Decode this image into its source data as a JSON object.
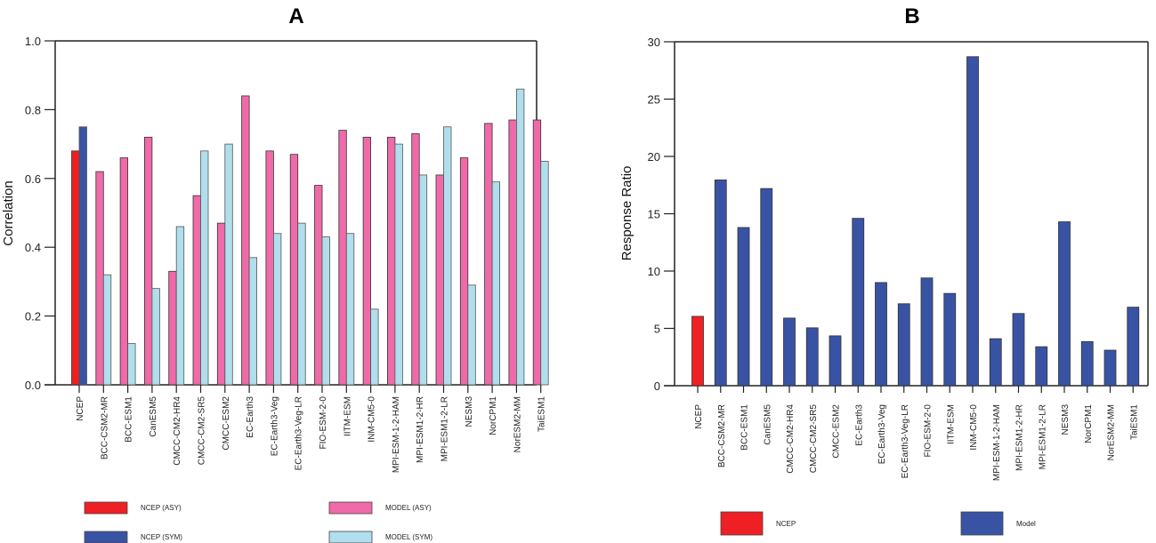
{
  "chart_data": [
    {
      "type": "bar",
      "title": "A",
      "xlabel": "",
      "ylabel": "Correlation",
      "ylim": [
        0,
        1.0
      ],
      "yticks": [
        "0.0",
        "0.2",
        "0.4",
        "0.6",
        "0.8",
        "1.0"
      ],
      "categories": [
        "NCEP",
        "BCC-CSM2-MR",
        "BCC-ESM1",
        "CanESM5",
        "CMCC-CM2-HR4",
        "CMCC-CM2-SR5",
        "CMCC-ESM2",
        "EC-Earth3",
        "EC-Earth3-Veg",
        "EC-Earth3-Veg-LR",
        "FIO-ESM-2-0",
        "IITM-ESM",
        "INM-CM5-0",
        "MPI-ESM-1-2-HAM",
        "MPI-ESM1-2-HR",
        "MPI-ESM1-2-LR",
        "NESM3",
        "NorCPM1",
        "NorESM2-MM",
        "TaiESM1"
      ],
      "series": [
        {
          "name": "ASY",
          "values": [
            0.68,
            0.62,
            0.66,
            0.72,
            0.33,
            0.55,
            0.47,
            0.84,
            0.68,
            0.67,
            0.58,
            0.74,
            0.72,
            0.72,
            0.73,
            0.61,
            0.66,
            0.76,
            0.77,
            0.77
          ]
        },
        {
          "name": "SYM",
          "values": [
            0.75,
            0.32,
            0.12,
            0.28,
            0.46,
            0.68,
            0.7,
            0.37,
            0.44,
            0.47,
            0.43,
            0.44,
            0.22,
            0.7,
            0.61,
            0.75,
            0.29,
            0.59,
            0.86,
            0.65
          ]
        }
      ],
      "legend": [
        {
          "label": "NCEP (ASY)",
          "color": "#ee2024"
        },
        {
          "label": "MODEL (ASY)",
          "color": "#ef6aa8"
        },
        {
          "label": "NCEP (SYM)",
          "color": "#3953a4"
        },
        {
          "label": "MODEL (SYM)",
          "color": "#b0deec"
        }
      ],
      "legend_position": "bottom"
    },
    {
      "type": "bar",
      "title": "B",
      "xlabel": "",
      "ylabel": "Response Ratio",
      "ylim": [
        0,
        30
      ],
      "yticks": [
        "0",
        "5",
        "10",
        "15",
        "20",
        "25",
        "30"
      ],
      "categories": [
        "NCEP",
        "BCC-CSM2-MR",
        "BCC-ESM1",
        "CanESM5",
        "CMCC-CM2-HR4",
        "CMCC-CM2-SR5",
        "CMCC-ESM2",
        "EC-Earth3",
        "EC-Earth3-Veg",
        "EC-Earth3-Veg-LR",
        "FIO-ESM-2-0",
        "IITM-ESM",
        "INM-CM5-0",
        "MPI-ESM-1-2-HAM",
        "MPI-ESM1-2-HR",
        "MPI-ESM1-2-LR",
        "NESM3",
        "NorCPM1",
        "NorESM2-MM",
        "TaiESM1"
      ],
      "values": [
        6.05,
        17.95,
        13.8,
        17.2,
        5.9,
        5.05,
        4.35,
        14.6,
        9.0,
        7.15,
        9.4,
        8.05,
        28.7,
        4.1,
        6.3,
        3.4,
        14.3,
        3.85,
        3.1,
        6.85
      ],
      "legend": [
        {
          "label": "NCEP",
          "color": "#ee2024"
        },
        {
          "label": "Model",
          "color": "#3953a4"
        }
      ],
      "legend_position": "bottom"
    }
  ]
}
